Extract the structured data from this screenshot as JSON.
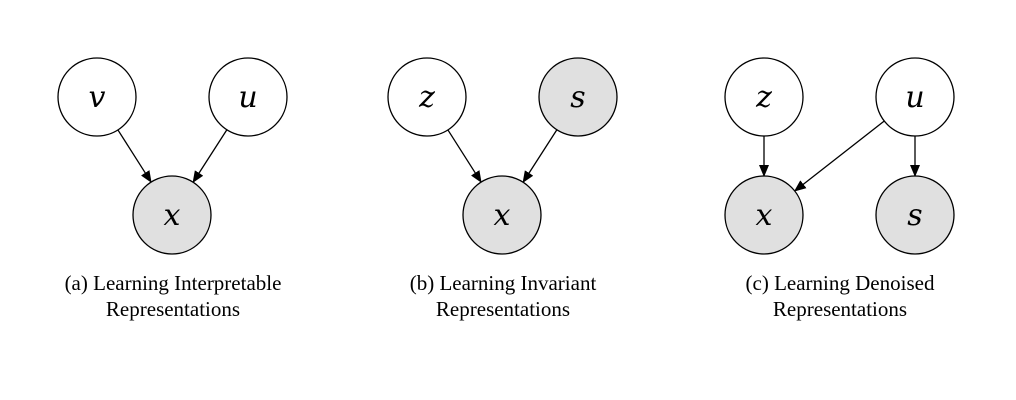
{
  "colors": {
    "observed_fill": "#e0e0e0",
    "latent_fill": "#ffffff",
    "stroke": "#000000"
  },
  "panels": [
    {
      "id": "a",
      "caption_line1": "(a) Learning Interpretable",
      "caption_line2": "Representations",
      "nodes": [
        {
          "id": "a-v",
          "label": "v",
          "observed": false
        },
        {
          "id": "a-u",
          "label": "u",
          "observed": false
        },
        {
          "id": "a-x",
          "label": "x",
          "observed": true
        }
      ],
      "edges": [
        {
          "from": "a-v",
          "to": "a-x"
        },
        {
          "from": "a-u",
          "to": "a-x"
        }
      ]
    },
    {
      "id": "b",
      "caption_line1": "(b) Learning Invariant",
      "caption_line2": "Representations",
      "nodes": [
        {
          "id": "b-z",
          "label": "z",
          "observed": false
        },
        {
          "id": "b-s",
          "label": "s",
          "observed": true
        },
        {
          "id": "b-x",
          "label": "x",
          "observed": true
        }
      ],
      "edges": [
        {
          "from": "b-z",
          "to": "b-x"
        },
        {
          "from": "b-s",
          "to": "b-x"
        }
      ]
    },
    {
      "id": "c",
      "caption_line1": "(c) Learning Denoised",
      "caption_line2": "Representations",
      "nodes": [
        {
          "id": "c-z",
          "label": "z",
          "observed": false
        },
        {
          "id": "c-u",
          "label": "u",
          "observed": false
        },
        {
          "id": "c-x",
          "label": "x",
          "observed": true
        },
        {
          "id": "c-s",
          "label": "s",
          "observed": true
        }
      ],
      "edges": [
        {
          "from": "c-z",
          "to": "c-x"
        },
        {
          "from": "c-u",
          "to": "c-x"
        },
        {
          "from": "c-u",
          "to": "c-s"
        }
      ]
    }
  ]
}
